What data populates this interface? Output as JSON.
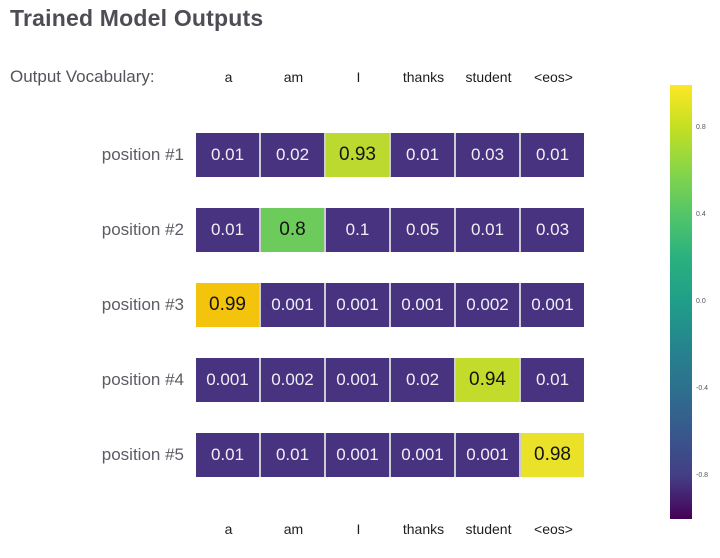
{
  "page": {
    "title": "Trained Model Outputs"
  },
  "vocab_label": "Output Vocabulary:",
  "columns": [
    "a",
    "am",
    "I",
    "thanks",
    "student",
    "<eos>"
  ],
  "colors": {
    "cell_low": "#473380",
    "cell_text_low": "#f0eff5",
    "cell_text_high": "#141414",
    "highlight_093": "#bcd930",
    "highlight_08": "#6ccb5a",
    "highlight_099": "#f4c40c",
    "highlight_094": "#c3db2a",
    "highlight_098": "#e9e228",
    "title_text": "#4d4e55",
    "label_text": "#5b5c64"
  },
  "rows": [
    {
      "label": "position #1",
      "cells": [
        {
          "value": "0.01",
          "bg": "#473380",
          "fg": "#f0eff5"
        },
        {
          "value": "0.02",
          "bg": "#473380",
          "fg": "#f0eff5"
        },
        {
          "value": "0.93",
          "bg": "#bcd930",
          "fg": "#141414"
        },
        {
          "value": "0.01",
          "bg": "#473380",
          "fg": "#f0eff5"
        },
        {
          "value": "0.03",
          "bg": "#473380",
          "fg": "#f0eff5"
        },
        {
          "value": "0.01",
          "bg": "#473380",
          "fg": "#f0eff5"
        }
      ]
    },
    {
      "label": "position #2",
      "cells": [
        {
          "value": "0.01",
          "bg": "#473380",
          "fg": "#f0eff5"
        },
        {
          "value": "0.8",
          "bg": "#6ccb5a",
          "fg": "#141414"
        },
        {
          "value": "0.1",
          "bg": "#473380",
          "fg": "#f0eff5"
        },
        {
          "value": "0.05",
          "bg": "#473380",
          "fg": "#f0eff5"
        },
        {
          "value": "0.01",
          "bg": "#473380",
          "fg": "#f0eff5"
        },
        {
          "value": "0.03",
          "bg": "#473380",
          "fg": "#f0eff5"
        }
      ]
    },
    {
      "label": "position #3",
      "cells": [
        {
          "value": "0.99",
          "bg": "#f4c40c",
          "fg": "#141414"
        },
        {
          "value": "0.001",
          "bg": "#473380",
          "fg": "#f0eff5"
        },
        {
          "value": "0.001",
          "bg": "#473380",
          "fg": "#f0eff5"
        },
        {
          "value": "0.001",
          "bg": "#473380",
          "fg": "#f0eff5"
        },
        {
          "value": "0.002",
          "bg": "#473380",
          "fg": "#f0eff5"
        },
        {
          "value": "0.001",
          "bg": "#473380",
          "fg": "#f0eff5"
        }
      ]
    },
    {
      "label": "position #4",
      "cells": [
        {
          "value": "0.001",
          "bg": "#473380",
          "fg": "#f0eff5"
        },
        {
          "value": "0.002",
          "bg": "#473380",
          "fg": "#f0eff5"
        },
        {
          "value": "0.001",
          "bg": "#473380",
          "fg": "#f0eff5"
        },
        {
          "value": "0.02",
          "bg": "#473380",
          "fg": "#f0eff5"
        },
        {
          "value": "0.94",
          "bg": "#c3db2a",
          "fg": "#141414"
        },
        {
          "value": "0.01",
          "bg": "#473380",
          "fg": "#f0eff5"
        }
      ]
    },
    {
      "label": "position #5",
      "cells": [
        {
          "value": "0.01",
          "bg": "#473380",
          "fg": "#f0eff5"
        },
        {
          "value": "0.01",
          "bg": "#473380",
          "fg": "#f0eff5"
        },
        {
          "value": "0.001",
          "bg": "#473380",
          "fg": "#f0eff5"
        },
        {
          "value": "0.001",
          "bg": "#473380",
          "fg": "#f0eff5"
        },
        {
          "value": "0.001",
          "bg": "#473380",
          "fg": "#f0eff5"
        },
        {
          "value": "0.98",
          "bg": "#e9e228",
          "fg": "#141414"
        }
      ]
    }
  ],
  "colorbar": {
    "ticks": [
      "0.8",
      "0.4",
      "0.0",
      "-0.4",
      "-0.8"
    ],
    "top_color": "#fde725",
    "bottom_color": "#440154"
  },
  "chart_data": {
    "type": "heatmap",
    "title": "Trained Model Outputs",
    "x_categories": [
      "a",
      "am",
      "I",
      "thanks",
      "student",
      "<eos>"
    ],
    "y_categories": [
      "position #1",
      "position #2",
      "position #3",
      "position #4",
      "position #5"
    ],
    "values": [
      [
        0.01,
        0.02,
        0.93,
        0.01,
        0.03,
        0.01
      ],
      [
        0.01,
        0.8,
        0.1,
        0.05,
        0.01,
        0.03
      ],
      [
        0.99,
        0.001,
        0.001,
        0.001,
        0.002,
        0.001
      ],
      [
        0.001,
        0.002,
        0.001,
        0.02,
        0.94,
        0.01
      ],
      [
        0.01,
        0.01,
        0.001,
        0.001,
        0.001,
        0.98
      ]
    ],
    "colormap": "viridis",
    "colorbar": {
      "position": "right",
      "ticks": [
        0.8,
        0.4,
        0.0,
        -0.4,
        -0.8
      ],
      "range": [
        -1,
        1
      ]
    },
    "grid": false,
    "legend": false
  }
}
